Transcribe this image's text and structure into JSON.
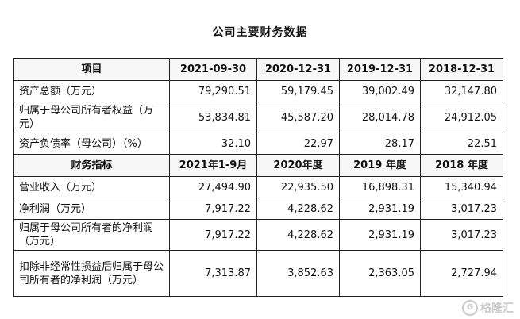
{
  "title": "公司主要财务数据",
  "header1": [
    "项目",
    "2021-09-30",
    "2020-12-31",
    "2019-12-31",
    "2018-12-31"
  ],
  "section1_rows": [
    {
      "label": "资产总额（万元）",
      "values": [
        "79,290.51",
        "59,179.45",
        "39,002.49",
        "32,147.80"
      ]
    },
    {
      "label": "归属于母公司所有者权益（万元）",
      "values": [
        "53,834.81",
        "45,587.20",
        "28,014.78",
        "24,912.05"
      ]
    },
    {
      "label": "资产负债率（母公司）（%）",
      "values": [
        "32.10",
        "22.97",
        "28.17",
        "22.51"
      ]
    }
  ],
  "header2": [
    "财务指标",
    "2021年1-9月",
    "2020年度",
    "2019 年度",
    "2018 年度"
  ],
  "section2_rows": [
    {
      "label": "营业收入（万元）",
      "values": [
        "27,494.90",
        "22,935.50",
        "16,898.31",
        "15,340.94"
      ]
    },
    {
      "label": "净利润（万元）",
      "values": [
        "7,917.22",
        "4,228.62",
        "2,931.19",
        "3,017.23"
      ]
    },
    {
      "label": "归属于母公司所有者的净利润（万元）",
      "values": [
        "7,917.22",
        "4,228.62",
        "2,931.19",
        "3,017.23"
      ]
    },
    {
      "label": "扣除非经常性损益后归属于母公司所有者的净利润（万元）",
      "values": [
        "7,313.87",
        "3,852.63",
        "2,363.05",
        "2,727.94"
      ]
    }
  ],
  "watermark": {
    "text": "格隆汇",
    "logo": "G"
  }
}
